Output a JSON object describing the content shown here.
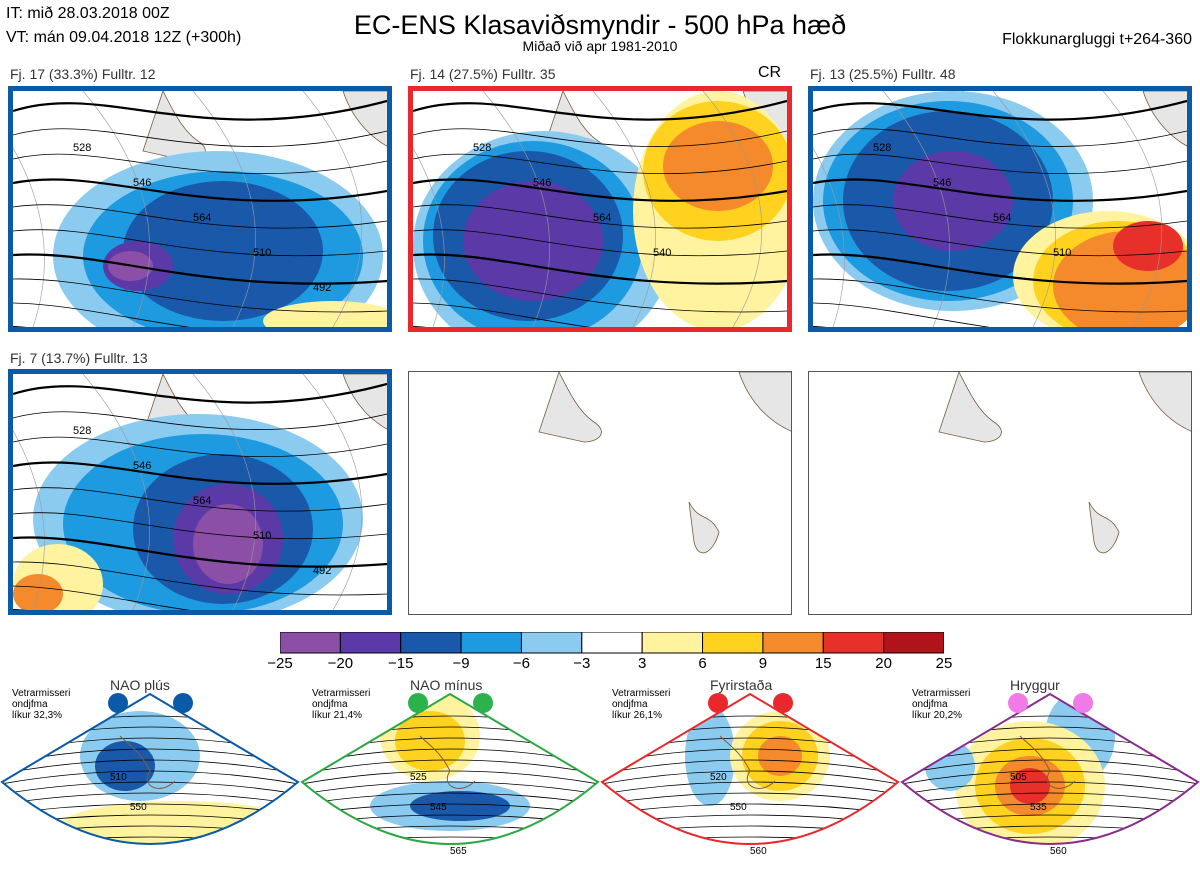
{
  "header": {
    "it_line": "IT: mið 28.03.2018 00Z",
    "vt_line": "VT: mán 09.04.2018 12Z  (+300h)",
    "title": "EC-ENS Klasaviðsmyndir - 500 hPa hæð",
    "subtitle": "Miðað við apr 1981-2010",
    "window": "Flokkunargluggi t+264-360"
  },
  "panels": [
    {
      "label": "Fj. 17 (33.3%)   Fulltr. 12",
      "border": "#0b5aa8",
      "contours": [
        "528",
        "546",
        "564",
        "510",
        "492"
      ]
    },
    {
      "label": "Fj. 14 (27.5%)   Fulltr. 35",
      "border": "#e8282b",
      "tag": "CR",
      "contours": [
        "528",
        "546",
        "564",
        "540"
      ]
    },
    {
      "label": "Fj. 13 (25.5%)   Fulltr. 48",
      "border": "#0b5aa8",
      "contours": [
        "528",
        "546",
        "564",
        "510"
      ]
    },
    {
      "label": "Fj. 7 (13.7%)   Fulltr. 13",
      "border": "#0b5aa8",
      "contours": [
        "528",
        "546",
        "564",
        "510",
        "492"
      ]
    },
    {
      "label": "",
      "border": "",
      "empty": true
    },
    {
      "label": "",
      "border": "",
      "empty": true
    }
  ],
  "colorbar": {
    "ticks": [
      "−25",
      "−20",
      "−15",
      "−9",
      "−6",
      "−3",
      "3",
      "6",
      "9",
      "15",
      "20",
      "25"
    ],
    "colors": [
      "#8b4fa8",
      "#5b3aa8",
      "#1a59aa",
      "#1e9ae0",
      "#8ccbf0",
      "#ffffff",
      "#fff3a0",
      "#ffd21f",
      "#f48a2c",
      "#e8302a",
      "#b0141a"
    ]
  },
  "regimes": [
    {
      "name": "NAO plús",
      "note": [
        "Vetrarmisseri",
        "ondjfma",
        "líkur 32,3%"
      ],
      "color": "#0b5aa8",
      "dot": "#0b5aa8",
      "labels": [
        "510",
        "550"
      ]
    },
    {
      "name": "NAO mínus",
      "note": [
        "Vetrarmisseri",
        "ondjfma",
        "líkur 21,4%"
      ],
      "color": "#2ca842",
      "dot": "#2cb24a",
      "labels": [
        "525",
        "545",
        "565"
      ]
    },
    {
      "name": "Fyrirstaða",
      "note": [
        "Vetrarmisseri",
        "ondjfma",
        "líkur 26,1%"
      ],
      "color": "#e8282b",
      "dot": "#e8282b",
      "labels": [
        "520",
        "550",
        "560"
      ]
    },
    {
      "name": "Hryggur",
      "note": [
        "Vetrarmisseri",
        "ondjfma",
        "líkur 20,2%"
      ],
      "color": "#8a2b8e",
      "dot": "#f07ae8",
      "labels": [
        "505",
        "535",
        "560"
      ]
    }
  ]
}
